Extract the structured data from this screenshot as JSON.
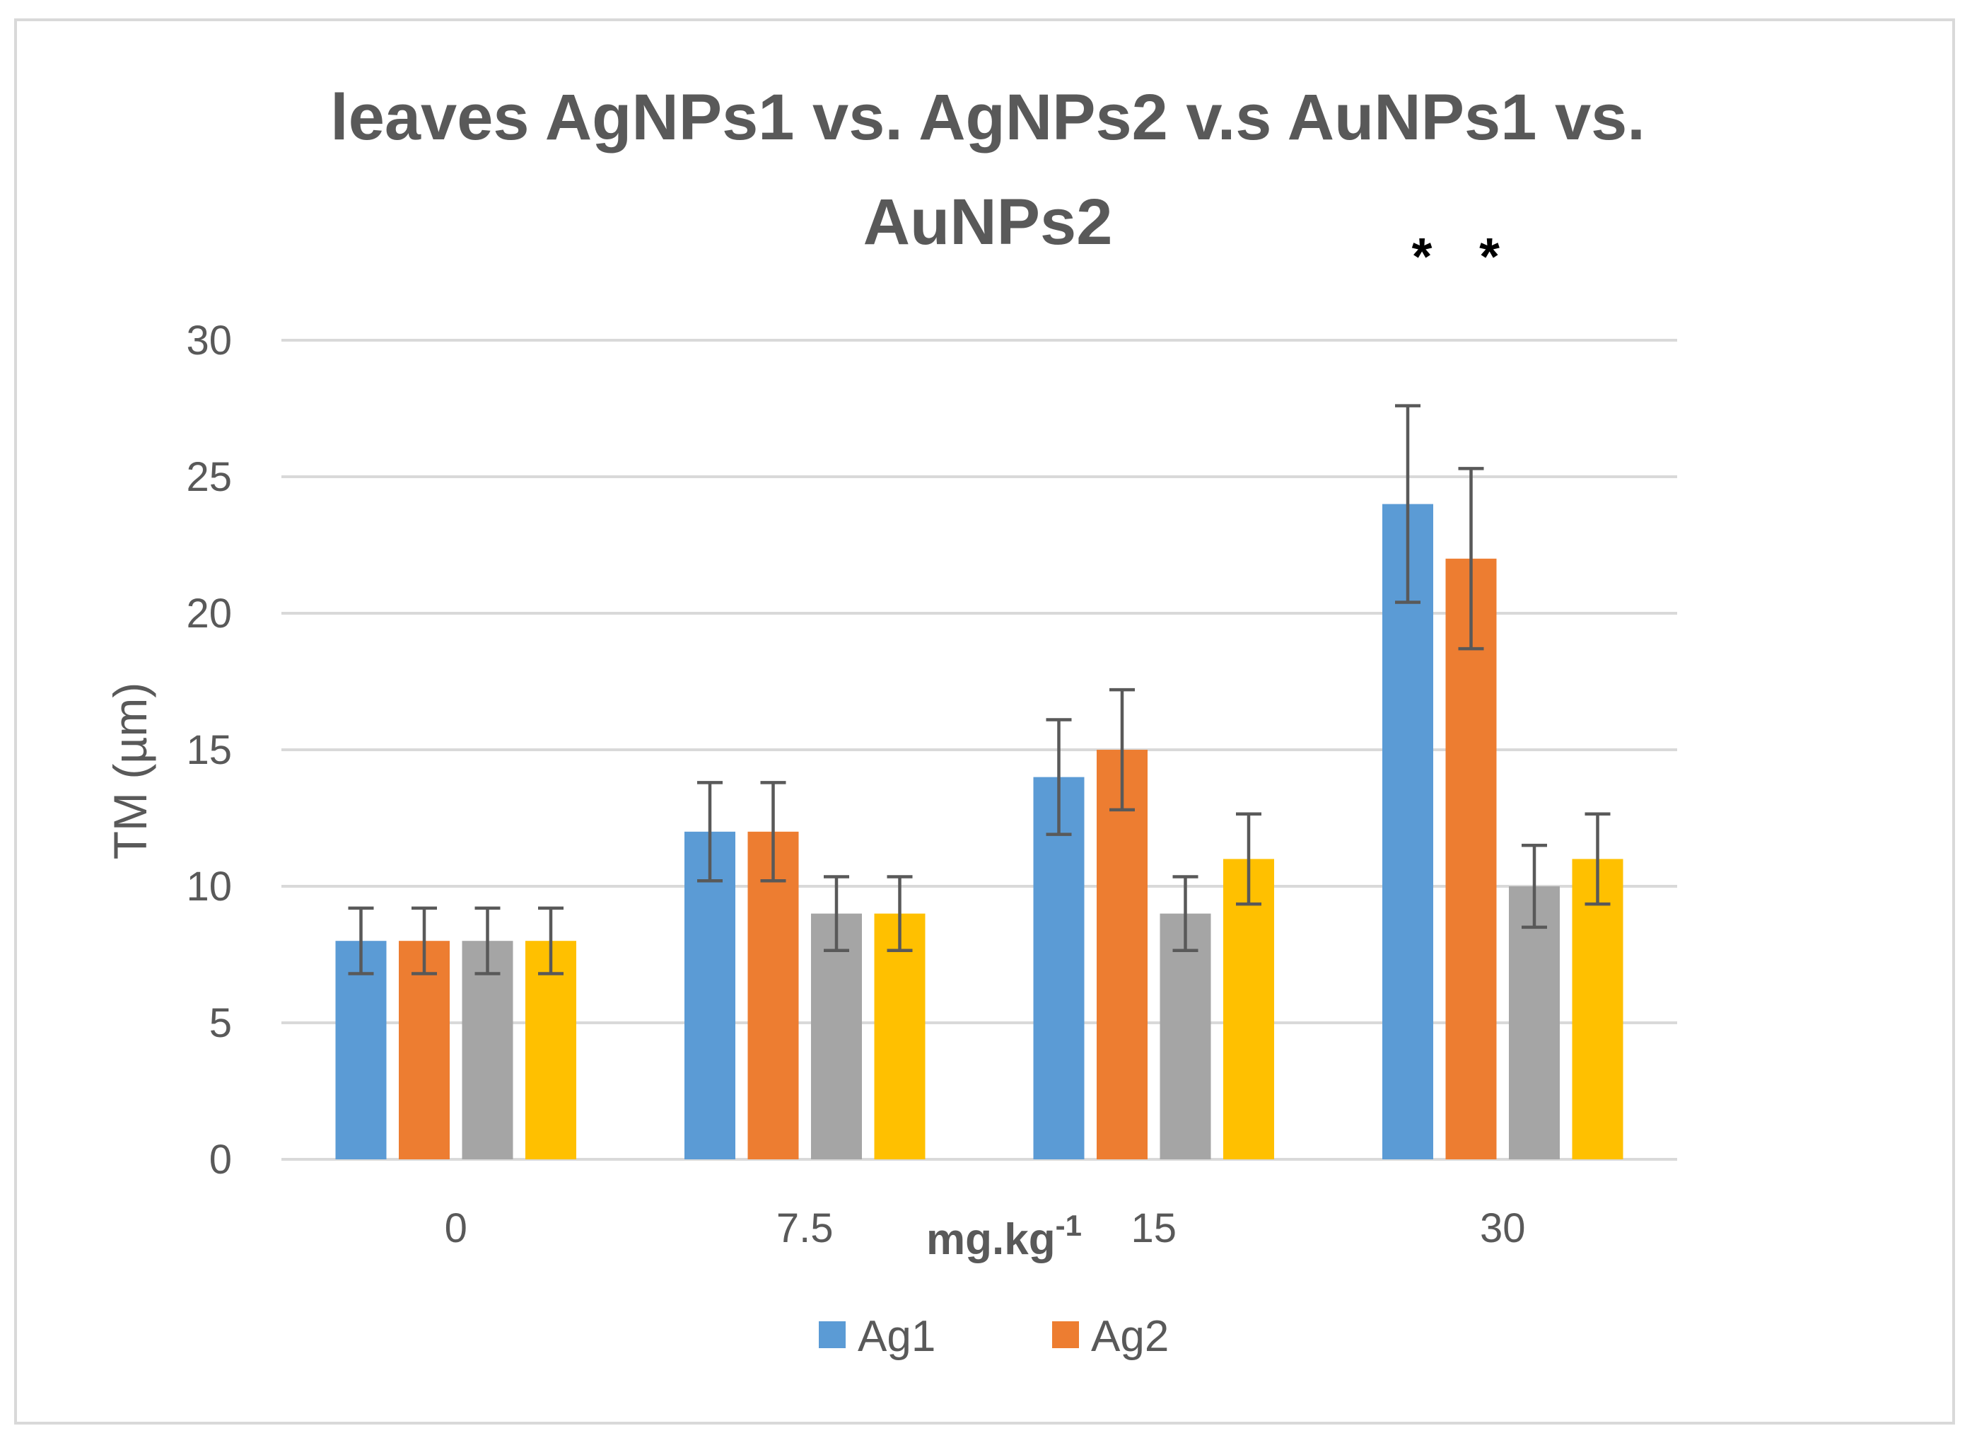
{
  "chart_data": {
    "type": "bar",
    "title_lines": [
      "leaves AgNPs1 vs. AgNPs2 v.s AuNPs1 vs.",
      "AuNPs2"
    ],
    "xlabel": "mg.kg",
    "xlabel_sup": "-1",
    "ylabel": "TM (µm)",
    "categories": [
      "0",
      "7.5",
      "15",
      "30"
    ],
    "ylim": [
      0,
      30
    ],
    "yticks": [
      "0",
      "5",
      "10",
      "15",
      "20",
      "25",
      "30"
    ],
    "grid": true,
    "legend_position": "bottom",
    "series": [
      {
        "name": "Ag1",
        "color": "#5B9BD5",
        "values": [
          8,
          12,
          14,
          24
        ],
        "errors": [
          1.2,
          1.8,
          2.1,
          3.6
        ]
      },
      {
        "name": "Ag2",
        "color": "#ED7D31",
        "values": [
          8,
          12,
          15,
          22
        ],
        "errors": [
          1.2,
          1.8,
          2.2,
          3.3
        ]
      },
      {
        "name": "",
        "color": "#A5A5A5",
        "values": [
          8,
          9,
          9,
          10
        ],
        "errors": [
          1.2,
          1.35,
          1.35,
          1.5
        ]
      },
      {
        "name": "",
        "color": "#FFC000",
        "values": [
          8,
          9,
          11,
          11
        ],
        "errors": [
          1.2,
          1.35,
          1.65,
          1.65
        ]
      }
    ],
    "annotations": [
      "*",
      "*"
    ]
  }
}
